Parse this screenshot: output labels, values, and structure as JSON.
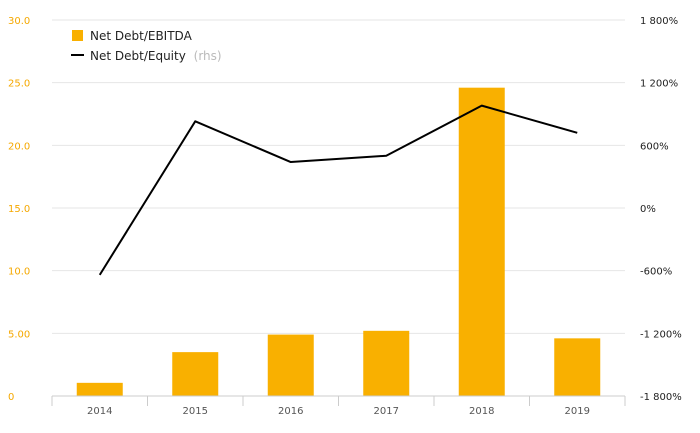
{
  "chart_data": {
    "type": "bar",
    "categories": [
      "2014",
      "2015",
      "2016",
      "2017",
      "2018",
      "2019"
    ],
    "series": [
      {
        "name": "Net Debt/EBITDA",
        "type": "bar",
        "axis": "left",
        "color": "#f9b000",
        "values": [
          1.05,
          3.5,
          4.9,
          5.2,
          24.6,
          4.6
        ]
      },
      {
        "name": "Net Debt/Equity",
        "legend_suffix": "(rhs)",
        "type": "line",
        "axis": "right",
        "color": "#000000",
        "values": [
          -640,
          830,
          440,
          500,
          980,
          720
        ]
      }
    ],
    "ylim_left": [
      0,
      30
    ],
    "yticks_left": [
      "0",
      "5.00",
      "10.0",
      "15.0",
      "20.0",
      "25.0",
      "30.0"
    ],
    "ylim_right": [
      -1800,
      1800
    ],
    "yticks_right": [
      "-1 800%",
      "-1 200%",
      "-600%",
      "0%",
      "600%",
      "1 200%",
      "1 800%"
    ],
    "grid": true,
    "legend_position": "top-left"
  }
}
